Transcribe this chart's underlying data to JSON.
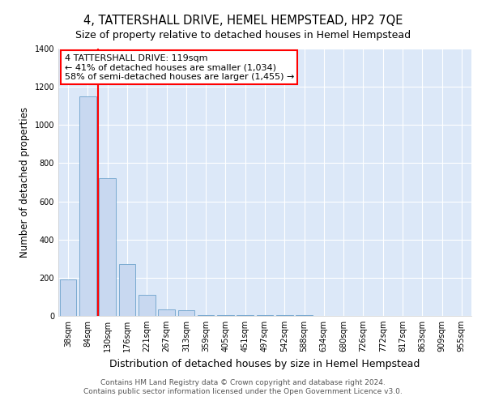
{
  "title": "4, TATTERSHALL DRIVE, HEMEL HEMPSTEAD, HP2 7QE",
  "subtitle": "Size of property relative to detached houses in Hemel Hempstead",
  "xlabel": "Distribution of detached houses by size in Hemel Hempstead",
  "ylabel": "Number of detached properties",
  "footer_line1": "Contains HM Land Registry data © Crown copyright and database right 2024.",
  "footer_line2": "Contains public sector information licensed under the Open Government Licence v3.0.",
  "bin_labels": [
    "38sqm",
    "84sqm",
    "130sqm",
    "176sqm",
    "221sqm",
    "267sqm",
    "313sqm",
    "359sqm",
    "405sqm",
    "451sqm",
    "497sqm",
    "542sqm",
    "588sqm",
    "634sqm",
    "680sqm",
    "726sqm",
    "772sqm",
    "817sqm",
    "863sqm",
    "909sqm",
    "955sqm"
  ],
  "bar_heights": [
    190,
    1150,
    720,
    270,
    110,
    35,
    30,
    5,
    5,
    3,
    3,
    3,
    3,
    1,
    1,
    1,
    1,
    1,
    1,
    1,
    1
  ],
  "bar_color": "#c8d8f0",
  "bar_edgecolor": "#7aaad0",
  "vline_x": 1.5,
  "vline_color": "red",
  "annotation_text": "4 TATTERSHALL DRIVE: 119sqm\n← 41% of detached houses are smaller (1,034)\n58% of semi-detached houses are larger (1,455) →",
  "ylim": [
    0,
    1400
  ],
  "yticks": [
    0,
    200,
    400,
    600,
    800,
    1000,
    1200,
    1400
  ],
  "fig_background_color": "#ffffff",
  "plot_bg_color": "#dce8f8",
  "title_fontsize": 10.5,
  "subtitle_fontsize": 9,
  "annotation_fontsize": 8,
  "ylabel_fontsize": 8.5,
  "xlabel_fontsize": 9,
  "tick_fontsize": 7,
  "footer_fontsize": 6.5
}
